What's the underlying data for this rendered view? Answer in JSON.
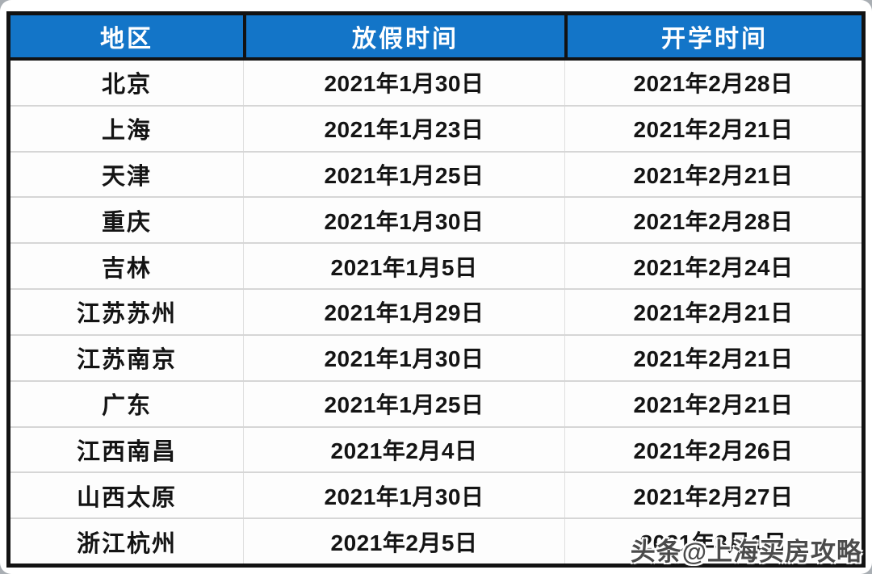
{
  "chart_data": {
    "type": "table",
    "title": "",
    "columns": [
      {
        "key": "region",
        "label": "地区"
      },
      {
        "key": "holiday",
        "label": "放假时间"
      },
      {
        "key": "start",
        "label": "开学时间"
      }
    ],
    "rows": [
      {
        "region": "北京",
        "holiday": "2021年1月30日",
        "start": "2021年2月28日"
      },
      {
        "region": "上海",
        "holiday": "2021年1月23日",
        "start": "2021年2月21日"
      },
      {
        "region": "天津",
        "holiday": "2021年1月25日",
        "start": "2021年2月21日"
      },
      {
        "region": "重庆",
        "holiday": "2021年1月30日",
        "start": "2021年2月28日"
      },
      {
        "region": "吉林",
        "holiday": "2021年1月5日",
        "start": "2021年2月24日"
      },
      {
        "region": "江苏苏州",
        "holiday": "2021年1月29日",
        "start": "2021年2月21日"
      },
      {
        "region": "江苏南京",
        "holiday": "2021年1月30日",
        "start": "2021年2月21日"
      },
      {
        "region": "广东",
        "holiday": "2021年1月25日",
        "start": "2021年2月21日"
      },
      {
        "region": "江西南昌",
        "holiday": "2021年2月4日",
        "start": "2021年2月26日"
      },
      {
        "region": "山西太原",
        "holiday": "2021年1月30日",
        "start": "2021年2月27日"
      },
      {
        "region": "浙江杭州",
        "holiday": "2021年2月5日",
        "start": "2021年3月1日"
      }
    ]
  },
  "watermark": {
    "text": "头条@上海买房攻略"
  },
  "colors": {
    "header_bg": "#1375c8",
    "header_text": "#ffffff",
    "table_border": "#121212",
    "row_divider": "#d6d6d6",
    "column_divider": "#dedede",
    "cell_text": "#141414",
    "card_bg": "#ffffff",
    "page_corner_bg": "#a9aeb3",
    "watermark_text": "#4b4b4b"
  }
}
